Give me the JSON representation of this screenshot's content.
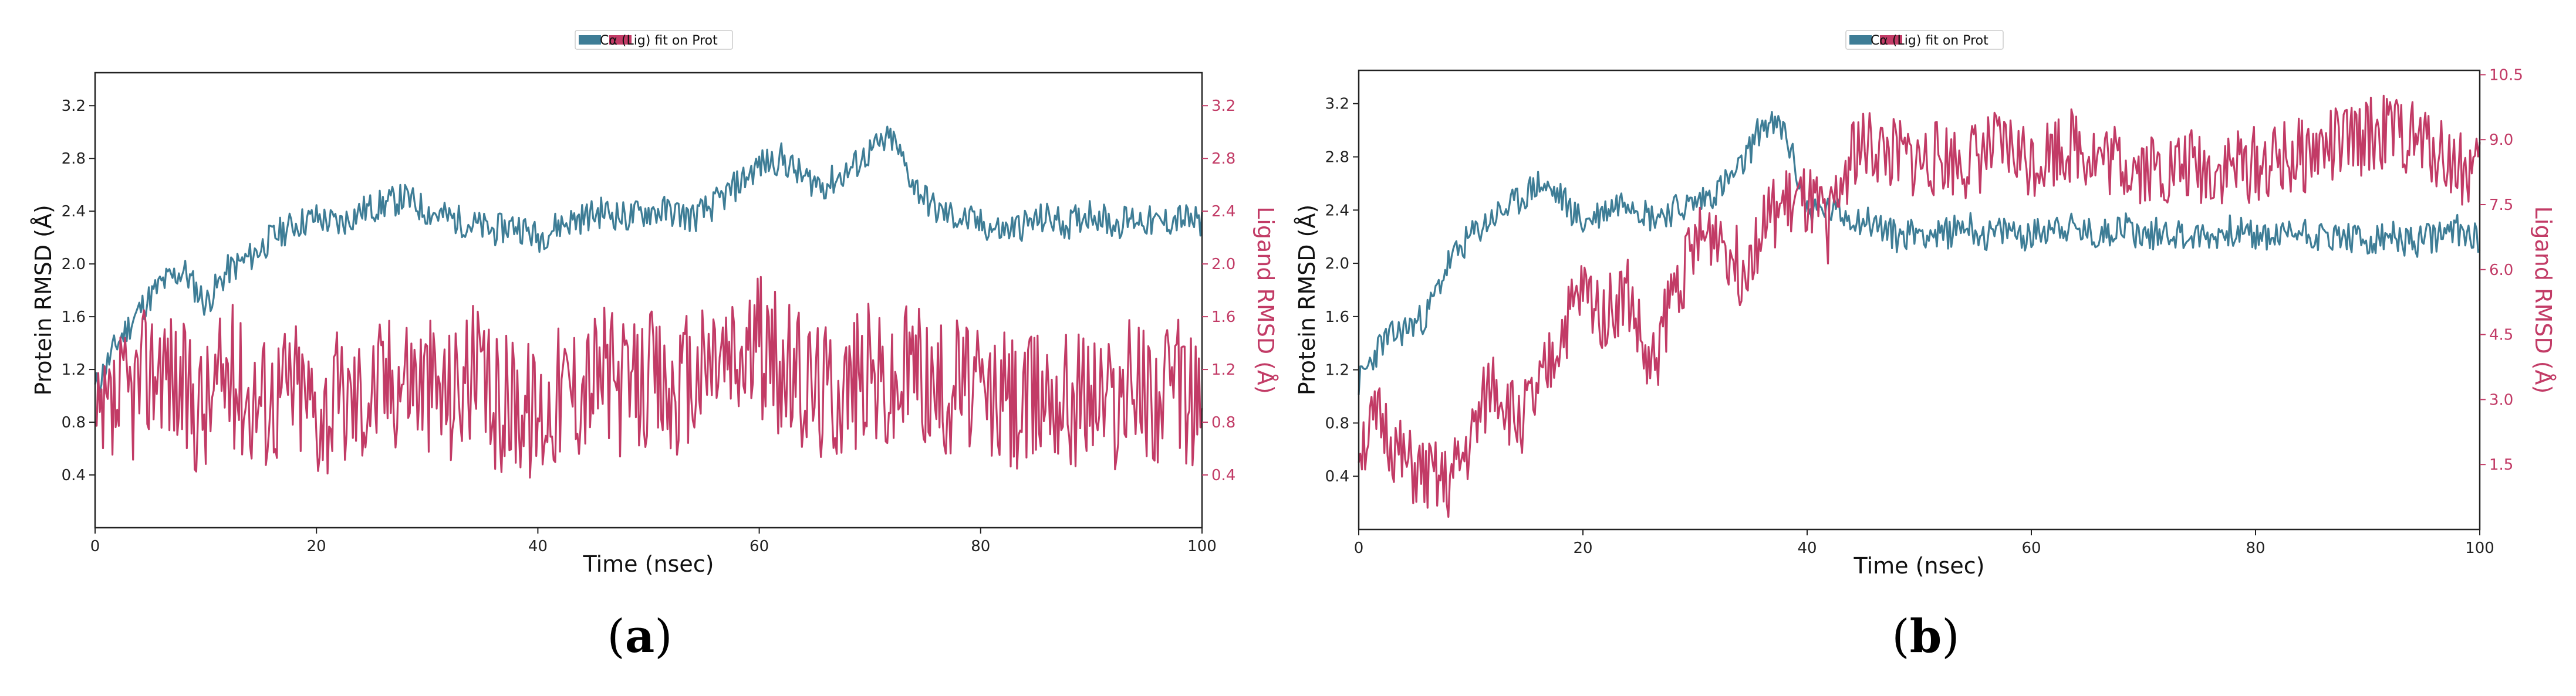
{
  "captions": [
    {
      "open": "(",
      "letter": "a",
      "close": ")"
    },
    {
      "open": "(",
      "letter": "b",
      "close": ")"
    }
  ],
  "colors": {
    "protein": "#3e7d96",
    "ligand": "#c23b66"
  },
  "chart_data": [
    {
      "type": "line",
      "legend": {
        "label": "Cα (Lig) fit on Prot",
        "placement": "top-center"
      },
      "xlabel": "Time (nsec)",
      "ylabel_left": "Protein RMSD (Å)",
      "ylabel_right": "Ligand RMSD (Å)",
      "xlim": [
        0,
        100
      ],
      "ylim_left": [
        0,
        3.45
      ],
      "ylim_right": [
        0,
        3.45
      ],
      "xticks": [
        0,
        20,
        40,
        60,
        80,
        100
      ],
      "yticks_left": [
        0.4,
        0.8,
        1.2,
        1.6,
        2.0,
        2.4,
        2.8,
        3.2
      ],
      "yticks_right": [
        0.4,
        0.8,
        1.2,
        1.6,
        2.0,
        2.4,
        2.8,
        3.2
      ],
      "grid": false,
      "series": [
        {
          "axis": "left",
          "x": [
            0,
            2,
            4,
            6,
            8,
            10,
            12,
            14,
            16,
            18,
            20,
            22,
            24,
            26,
            28,
            30,
            32,
            34,
            36,
            38,
            40,
            42,
            44,
            46,
            48,
            50,
            52,
            54,
            56,
            58,
            60,
            62,
            64,
            66,
            68,
            70,
            72,
            74,
            76,
            78,
            80,
            82,
            84,
            86,
            88,
            90,
            92,
            94,
            96,
            98,
            100
          ],
          "values": [
            1.05,
            1.4,
            1.65,
            1.85,
            1.95,
            1.7,
            1.95,
            2.05,
            2.2,
            2.3,
            2.35,
            2.3,
            2.4,
            2.45,
            2.5,
            2.4,
            2.35,
            2.3,
            2.25,
            2.3,
            2.2,
            2.3,
            2.35,
            2.4,
            2.35,
            2.4,
            2.4,
            2.35,
            2.45,
            2.6,
            2.75,
            2.8,
            2.65,
            2.6,
            2.7,
            2.85,
            2.95,
            2.6,
            2.4,
            2.35,
            2.3,
            2.25,
            2.3,
            2.35,
            2.3,
            2.4,
            2.3,
            2.35,
            2.3,
            2.35,
            2.3
          ]
        },
        {
          "axis": "right",
          "x": [
            0,
            2,
            4,
            6,
            8,
            10,
            12,
            14,
            16,
            18,
            20,
            22,
            24,
            26,
            28,
            30,
            32,
            34,
            36,
            38,
            40,
            42,
            44,
            46,
            48,
            50,
            52,
            54,
            56,
            58,
            60,
            62,
            64,
            66,
            68,
            70,
            72,
            74,
            76,
            78,
            80,
            82,
            84,
            86,
            88,
            90,
            92,
            94,
            96,
            98,
            100
          ],
          "values": [
            0.6,
            0.9,
            1.1,
            1.3,
            1.0,
            0.9,
            1.2,
            1.0,
            1.0,
            1.1,
            0.9,
            0.95,
            1.0,
            1.1,
            1.2,
            1.1,
            1.0,
            1.2,
            0.9,
            1.0,
            0.85,
            1.05,
            1.1,
            1.2,
            1.0,
            1.15,
            1.0,
            1.1,
            1.3,
            1.25,
            1.4,
            1.2,
            1.1,
            1.05,
            1.1,
            1.2,
            1.0,
            1.3,
            1.0,
            1.15,
            0.95,
            1.0,
            0.9,
            1.1,
            1.0,
            1.05,
            0.95,
            1.1,
            1.0,
            1.05,
            0.9
          ]
        }
      ]
    },
    {
      "type": "line",
      "legend": {
        "label": "Cα (Lig) fit on Prot",
        "placement": "top-center"
      },
      "xlabel": "Time (nsec)",
      "ylabel_left": "Protein RMSD (Å)",
      "ylabel_right": "Ligand RMSD (Å)",
      "xlim": [
        0,
        100
      ],
      "ylim_left": [
        0,
        3.45
      ],
      "ylim_right": [
        0,
        10.6
      ],
      "xticks": [
        0,
        20,
        40,
        60,
        80,
        100
      ],
      "yticks_left": [
        0.4,
        0.8,
        1.2,
        1.6,
        2.0,
        2.4,
        2.8,
        3.2
      ],
      "yticks_right": [
        1.5,
        3.0,
        4.5,
        6.0,
        7.5,
        9.0,
        10.5
      ],
      "grid": false,
      "series": [
        {
          "axis": "left",
          "x": [
            0,
            2,
            4,
            6,
            8,
            10,
            12,
            14,
            16,
            18,
            20,
            22,
            24,
            26,
            28,
            30,
            32,
            34,
            36,
            38,
            40,
            42,
            44,
            46,
            48,
            50,
            52,
            54,
            56,
            58,
            60,
            62,
            64,
            66,
            68,
            70,
            72,
            74,
            76,
            78,
            80,
            82,
            84,
            86,
            88,
            90,
            92,
            94,
            96,
            98,
            100
          ],
          "values": [
            1.1,
            1.4,
            1.5,
            1.6,
            2.0,
            2.2,
            2.35,
            2.45,
            2.6,
            2.5,
            2.3,
            2.4,
            2.5,
            2.35,
            2.4,
            2.45,
            2.55,
            2.7,
            3.05,
            3.0,
            2.4,
            2.4,
            2.35,
            2.3,
            2.2,
            2.25,
            2.2,
            2.3,
            2.2,
            2.25,
            2.2,
            2.3,
            2.25,
            2.2,
            2.3,
            2.2,
            2.25,
            2.2,
            2.2,
            2.25,
            2.2,
            2.2,
            2.25,
            2.2,
            2.2,
            2.15,
            2.2,
            2.15,
            2.2,
            2.25,
            2.2
          ]
        },
        {
          "axis": "right",
          "x": [
            0,
            2,
            4,
            6,
            8,
            10,
            12,
            14,
            16,
            18,
            20,
            22,
            24,
            26,
            28,
            30,
            32,
            34,
            36,
            38,
            40,
            42,
            44,
            46,
            48,
            50,
            52,
            54,
            56,
            58,
            60,
            62,
            64,
            66,
            68,
            70,
            72,
            74,
            76,
            78,
            80,
            82,
            84,
            86,
            88,
            90,
            92,
            94,
            96,
            98,
            100
          ],
          "values": [
            2.0,
            2.5,
            1.5,
            1.2,
            1.0,
            2.0,
            3.5,
            2.5,
            3.0,
            4.5,
            5.5,
            5.0,
            5.5,
            3.5,
            5.5,
            6.5,
            7.0,
            6.0,
            7.0,
            7.5,
            7.5,
            7.0,
            8.8,
            8.8,
            8.6,
            8.5,
            8.6,
            8.5,
            8.7,
            8.8,
            8.5,
            8.8,
            8.9,
            8.6,
            8.5,
            8.4,
            8.3,
            8.4,
            8.3,
            8.4,
            8.4,
            8.5,
            8.6,
            8.8,
            8.9,
            9.1,
            9.2,
            9.0,
            8.8,
            8.4,
            8.2
          ]
        }
      ]
    }
  ]
}
